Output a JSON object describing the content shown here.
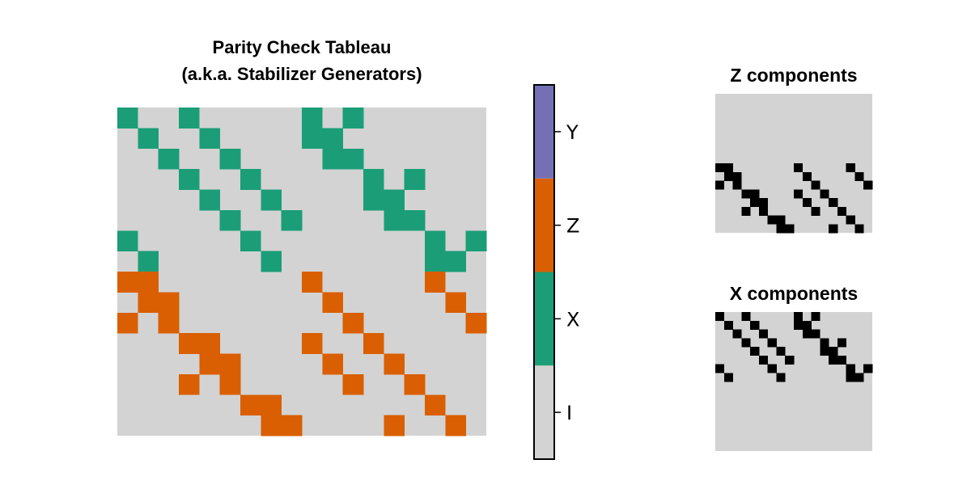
{
  "chart_data": [
    {
      "type": "heatmap",
      "title_line1": "Parity Check Tableau",
      "title_line2": "(a.k.a. Stabilizer Generators)",
      "n_rows": 16,
      "n_cols": 18,
      "cell_value_legend": {
        "0": "I",
        "1": "X",
        "2": "Z",
        "3": "Y"
      },
      "matrix": [
        [
          1,
          0,
          0,
          1,
          0,
          0,
          0,
          0,
          0,
          1,
          0,
          1,
          0,
          0,
          0,
          0,
          0,
          0
        ],
        [
          0,
          1,
          0,
          0,
          1,
          0,
          0,
          0,
          0,
          1,
          1,
          0,
          0,
          0,
          0,
          0,
          0,
          0
        ],
        [
          0,
          0,
          1,
          0,
          0,
          1,
          0,
          0,
          0,
          0,
          1,
          1,
          0,
          0,
          0,
          0,
          0,
          0
        ],
        [
          0,
          0,
          0,
          1,
          0,
          0,
          1,
          0,
          0,
          0,
          0,
          0,
          1,
          0,
          1,
          0,
          0,
          0
        ],
        [
          0,
          0,
          0,
          0,
          1,
          0,
          0,
          1,
          0,
          0,
          0,
          0,
          1,
          1,
          0,
          0,
          0,
          0
        ],
        [
          0,
          0,
          0,
          0,
          0,
          1,
          0,
          0,
          1,
          0,
          0,
          0,
          0,
          1,
          1,
          0,
          0,
          0
        ],
        [
          1,
          0,
          0,
          0,
          0,
          0,
          1,
          0,
          0,
          0,
          0,
          0,
          0,
          0,
          0,
          1,
          0,
          1
        ],
        [
          0,
          1,
          0,
          0,
          0,
          0,
          0,
          1,
          0,
          0,
          0,
          0,
          0,
          0,
          0,
          1,
          1,
          0
        ],
        [
          2,
          2,
          0,
          0,
          0,
          0,
          0,
          0,
          0,
          2,
          0,
          0,
          0,
          0,
          0,
          2,
          0,
          0
        ],
        [
          0,
          2,
          2,
          0,
          0,
          0,
          0,
          0,
          0,
          0,
          2,
          0,
          0,
          0,
          0,
          0,
          2,
          0
        ],
        [
          2,
          0,
          2,
          0,
          0,
          0,
          0,
          0,
          0,
          0,
          0,
          2,
          0,
          0,
          0,
          0,
          0,
          2
        ],
        [
          0,
          0,
          0,
          2,
          2,
          0,
          0,
          0,
          0,
          2,
          0,
          0,
          2,
          0,
          0,
          0,
          0,
          0
        ],
        [
          0,
          0,
          0,
          0,
          2,
          2,
          0,
          0,
          0,
          0,
          2,
          0,
          0,
          2,
          0,
          0,
          0,
          0
        ],
        [
          0,
          0,
          0,
          2,
          0,
          2,
          0,
          0,
          0,
          0,
          0,
          2,
          0,
          0,
          2,
          0,
          0,
          0
        ],
        [
          0,
          0,
          0,
          0,
          0,
          0,
          2,
          2,
          0,
          0,
          0,
          0,
          0,
          0,
          0,
          2,
          0,
          0
        ],
        [
          0,
          0,
          0,
          0,
          0,
          0,
          0,
          2,
          2,
          0,
          0,
          0,
          0,
          2,
          0,
          0,
          2,
          0
        ]
      ]
    },
    {
      "type": "heatmap",
      "title": "Z components",
      "n_rows": 16,
      "n_cols": 18,
      "matrix": [
        [
          0,
          0,
          0,
          0,
          0,
          0,
          0,
          0,
          0,
          0,
          0,
          0,
          0,
          0,
          0,
          0,
          0,
          0
        ],
        [
          0,
          0,
          0,
          0,
          0,
          0,
          0,
          0,
          0,
          0,
          0,
          0,
          0,
          0,
          0,
          0,
          0,
          0
        ],
        [
          0,
          0,
          0,
          0,
          0,
          0,
          0,
          0,
          0,
          0,
          0,
          0,
          0,
          0,
          0,
          0,
          0,
          0
        ],
        [
          0,
          0,
          0,
          0,
          0,
          0,
          0,
          0,
          0,
          0,
          0,
          0,
          0,
          0,
          0,
          0,
          0,
          0
        ],
        [
          0,
          0,
          0,
          0,
          0,
          0,
          0,
          0,
          0,
          0,
          0,
          0,
          0,
          0,
          0,
          0,
          0,
          0
        ],
        [
          0,
          0,
          0,
          0,
          0,
          0,
          0,
          0,
          0,
          0,
          0,
          0,
          0,
          0,
          0,
          0,
          0,
          0
        ],
        [
          0,
          0,
          0,
          0,
          0,
          0,
          0,
          0,
          0,
          0,
          0,
          0,
          0,
          0,
          0,
          0,
          0,
          0
        ],
        [
          0,
          0,
          0,
          0,
          0,
          0,
          0,
          0,
          0,
          0,
          0,
          0,
          0,
          0,
          0,
          0,
          0,
          0
        ],
        [
          1,
          1,
          0,
          0,
          0,
          0,
          0,
          0,
          0,
          1,
          0,
          0,
          0,
          0,
          0,
          1,
          0,
          0
        ],
        [
          0,
          1,
          1,
          0,
          0,
          0,
          0,
          0,
          0,
          0,
          1,
          0,
          0,
          0,
          0,
          0,
          1,
          0
        ],
        [
          1,
          0,
          1,
          0,
          0,
          0,
          0,
          0,
          0,
          0,
          0,
          1,
          0,
          0,
          0,
          0,
          0,
          1
        ],
        [
          0,
          0,
          0,
          1,
          1,
          0,
          0,
          0,
          0,
          1,
          0,
          0,
          1,
          0,
          0,
          0,
          0,
          0
        ],
        [
          0,
          0,
          0,
          0,
          1,
          1,
          0,
          0,
          0,
          0,
          1,
          0,
          0,
          1,
          0,
          0,
          0,
          0
        ],
        [
          0,
          0,
          0,
          1,
          0,
          1,
          0,
          0,
          0,
          0,
          0,
          1,
          0,
          0,
          1,
          0,
          0,
          0
        ],
        [
          0,
          0,
          0,
          0,
          0,
          0,
          1,
          1,
          0,
          0,
          0,
          0,
          0,
          0,
          0,
          1,
          0,
          0
        ],
        [
          0,
          0,
          0,
          0,
          0,
          0,
          0,
          1,
          1,
          0,
          0,
          0,
          0,
          1,
          0,
          0,
          1,
          0
        ]
      ]
    },
    {
      "type": "heatmap",
      "title": "X components",
      "n_rows": 16,
      "n_cols": 18,
      "matrix": [
        [
          1,
          0,
          0,
          1,
          0,
          0,
          0,
          0,
          0,
          1,
          0,
          1,
          0,
          0,
          0,
          0,
          0,
          0
        ],
        [
          0,
          1,
          0,
          0,
          1,
          0,
          0,
          0,
          0,
          1,
          1,
          0,
          0,
          0,
          0,
          0,
          0,
          0
        ],
        [
          0,
          0,
          1,
          0,
          0,
          1,
          0,
          0,
          0,
          0,
          1,
          1,
          0,
          0,
          0,
          0,
          0,
          0
        ],
        [
          0,
          0,
          0,
          1,
          0,
          0,
          1,
          0,
          0,
          0,
          0,
          0,
          1,
          0,
          1,
          0,
          0,
          0
        ],
        [
          0,
          0,
          0,
          0,
          1,
          0,
          0,
          1,
          0,
          0,
          0,
          0,
          1,
          1,
          0,
          0,
          0,
          0
        ],
        [
          0,
          0,
          0,
          0,
          0,
          1,
          0,
          0,
          1,
          0,
          0,
          0,
          0,
          1,
          1,
          0,
          0,
          0
        ],
        [
          1,
          0,
          0,
          0,
          0,
          0,
          1,
          0,
          0,
          0,
          0,
          0,
          0,
          0,
          0,
          1,
          0,
          1
        ],
        [
          0,
          1,
          0,
          0,
          0,
          0,
          0,
          1,
          0,
          0,
          0,
          0,
          0,
          0,
          0,
          1,
          1,
          0
        ],
        [
          0,
          0,
          0,
          0,
          0,
          0,
          0,
          0,
          0,
          0,
          0,
          0,
          0,
          0,
          0,
          0,
          0,
          0
        ],
        [
          0,
          0,
          0,
          0,
          0,
          0,
          0,
          0,
          0,
          0,
          0,
          0,
          0,
          0,
          0,
          0,
          0,
          0
        ],
        [
          0,
          0,
          0,
          0,
          0,
          0,
          0,
          0,
          0,
          0,
          0,
          0,
          0,
          0,
          0,
          0,
          0,
          0
        ],
        [
          0,
          0,
          0,
          0,
          0,
          0,
          0,
          0,
          0,
          0,
          0,
          0,
          0,
          0,
          0,
          0,
          0,
          0
        ],
        [
          0,
          0,
          0,
          0,
          0,
          0,
          0,
          0,
          0,
          0,
          0,
          0,
          0,
          0,
          0,
          0,
          0,
          0
        ],
        [
          0,
          0,
          0,
          0,
          0,
          0,
          0,
          0,
          0,
          0,
          0,
          0,
          0,
          0,
          0,
          0,
          0,
          0
        ],
        [
          0,
          0,
          0,
          0,
          0,
          0,
          0,
          0,
          0,
          0,
          0,
          0,
          0,
          0,
          0,
          0,
          0,
          0
        ],
        [
          0,
          0,
          0,
          0,
          0,
          0,
          0,
          0,
          0,
          0,
          0,
          0,
          0,
          0,
          0,
          0,
          0,
          0
        ]
      ]
    }
  ],
  "colorbar": {
    "labels": [
      "I",
      "X",
      "Z",
      "Y"
    ],
    "colors": [
      "#d3d3d3",
      "#1b9e77",
      "#d95f02",
      "#7570b3"
    ]
  },
  "colors": {
    "background": "#d3d3d3",
    "binary_on": "#000000",
    "binary_off": "#d3d3d3"
  }
}
